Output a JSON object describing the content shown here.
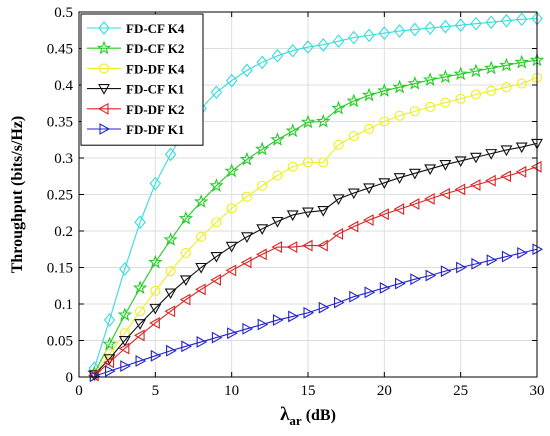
{
  "chart_data": {
    "type": "line",
    "xlabel_main": "λ",
    "xlabel_sub": "ar",
    "xlabel_unit": " (dB)",
    "ylabel": "Throughput (bits/s/Hz)",
    "xlim": [
      0,
      30
    ],
    "ylim": [
      0,
      0.5
    ],
    "x_ticks": [
      0,
      5,
      10,
      15,
      20,
      25,
      30
    ],
    "y_ticks": [
      0,
      0.05,
      0.1,
      0.15,
      0.2,
      0.25,
      0.3,
      0.35,
      0.4,
      0.45,
      0.5
    ],
    "grid": true,
    "legend_position": "top-left",
    "x": [
      1,
      2,
      3,
      4,
      5,
      6,
      7,
      8,
      9,
      10,
      11,
      12,
      13,
      14,
      15,
      16,
      17,
      18,
      19,
      20,
      21,
      22,
      23,
      24,
      25,
      26,
      27,
      28,
      29,
      30
    ],
    "series": [
      {
        "name": "FD-CF K4",
        "color": "#33dddd",
        "marker": "diamond",
        "values": [
          0.012,
          0.078,
          0.148,
          0.212,
          0.265,
          0.305,
          0.34,
          0.368,
          0.39,
          0.406,
          0.42,
          0.431,
          0.44,
          0.447,
          0.452,
          0.455,
          0.46,
          0.465,
          0.468,
          0.471,
          0.474,
          0.476,
          0.478,
          0.48,
          0.482,
          0.484,
          0.486,
          0.488,
          0.49,
          0.491
        ]
      },
      {
        "name": "FD-CF K2",
        "color": "#22cc22",
        "marker": "star",
        "values": [
          0.005,
          0.045,
          0.085,
          0.122,
          0.157,
          0.188,
          0.217,
          0.24,
          0.262,
          0.282,
          0.298,
          0.312,
          0.325,
          0.337,
          0.349,
          0.35,
          0.368,
          0.378,
          0.386,
          0.392,
          0.397,
          0.402,
          0.407,
          0.411,
          0.415,
          0.419,
          0.423,
          0.427,
          0.431,
          0.434
        ]
      },
      {
        "name": "FD-DF K4",
        "color": "#eeee22",
        "marker": "circle",
        "values": [
          0.003,
          0.032,
          0.06,
          0.09,
          0.118,
          0.145,
          0.17,
          0.192,
          0.212,
          0.231,
          0.247,
          0.262,
          0.276,
          0.288,
          0.294,
          0.294,
          0.318,
          0.33,
          0.34,
          0.35,
          0.358,
          0.364,
          0.37,
          0.376,
          0.381,
          0.387,
          0.392,
          0.397,
          0.402,
          0.41
        ]
      },
      {
        "name": "FD-CF K1",
        "color": "#111111",
        "marker": "triangle-down",
        "values": [
          0.003,
          0.025,
          0.05,
          0.073,
          0.094,
          0.115,
          0.133,
          0.15,
          0.165,
          0.179,
          0.192,
          0.203,
          0.213,
          0.222,
          0.226,
          0.228,
          0.244,
          0.252,
          0.259,
          0.266,
          0.273,
          0.279,
          0.285,
          0.291,
          0.296,
          0.301,
          0.306,
          0.311,
          0.315,
          0.32
        ]
      },
      {
        "name": "FD-DF K2",
        "color": "#dd2222",
        "marker": "triangle-left",
        "values": [
          0.002,
          0.02,
          0.039,
          0.057,
          0.074,
          0.09,
          0.106,
          0.12,
          0.133,
          0.146,
          0.157,
          0.168,
          0.178,
          0.178,
          0.18,
          0.18,
          0.196,
          0.206,
          0.215,
          0.223,
          0.23,
          0.237,
          0.244,
          0.251,
          0.257,
          0.263,
          0.269,
          0.275,
          0.281,
          0.288
        ]
      },
      {
        "name": "FD-DF K1",
        "color": "#2222cc",
        "marker": "triangle-right",
        "values": [
          0.001,
          0.008,
          0.015,
          0.022,
          0.029,
          0.036,
          0.042,
          0.048,
          0.054,
          0.06,
          0.066,
          0.072,
          0.078,
          0.083,
          0.088,
          0.095,
          0.102,
          0.11,
          0.116,
          0.122,
          0.128,
          0.134,
          0.139,
          0.145,
          0.15,
          0.155,
          0.16,
          0.165,
          0.17,
          0.175
        ]
      }
    ]
  }
}
